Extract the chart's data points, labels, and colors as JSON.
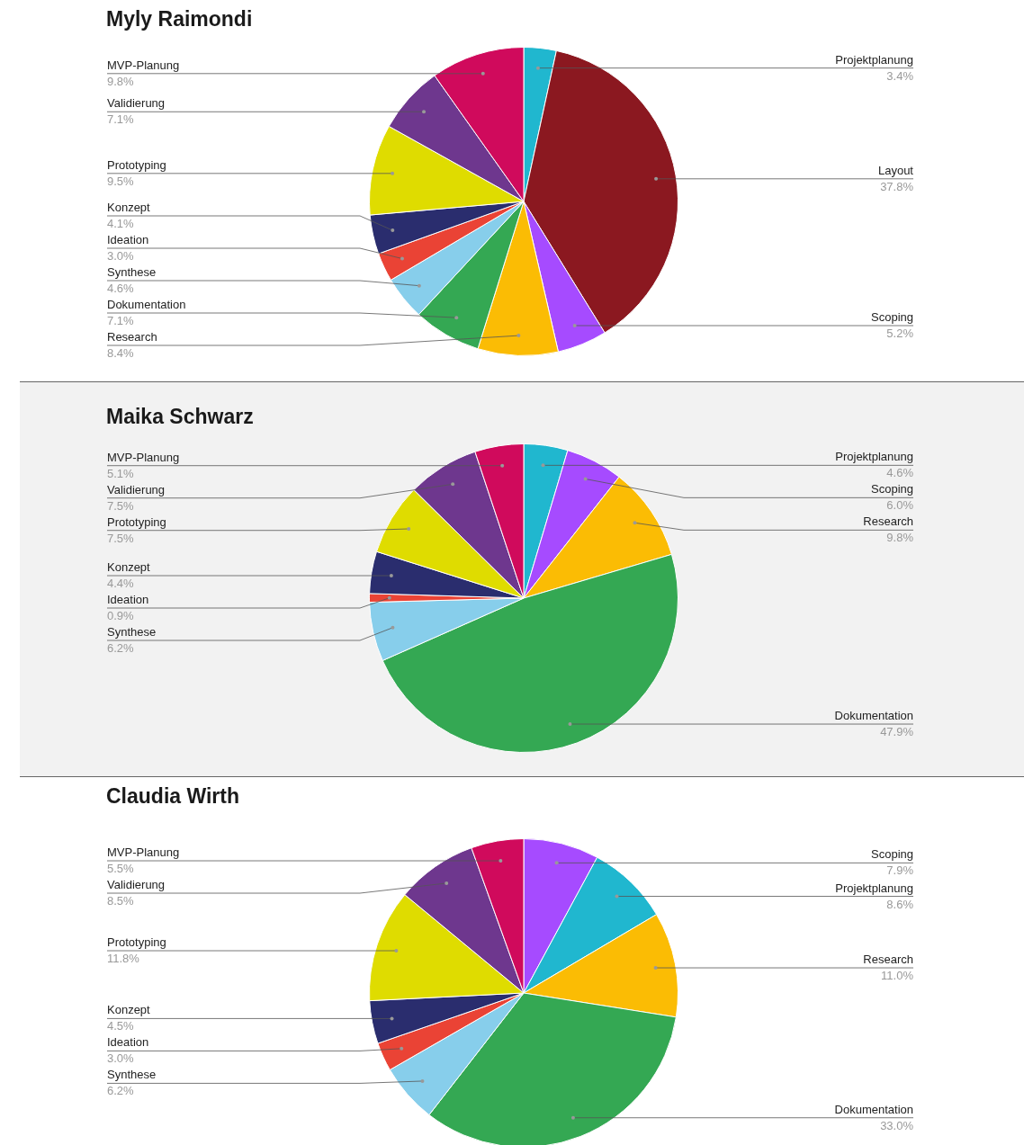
{
  "chart_data": [
    {
      "type": "pie",
      "title": "Myly Raimondi",
      "categories": [
        "Projektplanung",
        "Layout",
        "Scoping",
        "Research",
        "Dokumentation",
        "Synthese",
        "Ideation",
        "Konzept",
        "Prototyping",
        "Validierung",
        "MVP-Planung"
      ],
      "values": [
        3.4,
        37.8,
        5.2,
        8.4,
        7.1,
        4.6,
        3.0,
        4.1,
        9.5,
        7.1,
        9.8
      ],
      "value_labels": [
        "3.4%",
        "37.8%",
        "5.2%",
        "8.4%",
        "7.1%",
        "4.6%",
        "3.0%",
        "4.1%",
        "9.5%",
        "7.1%",
        "9.8%"
      ],
      "colors": [
        "#20b7cf",
        "#8b1820",
        "#a64bff",
        "#fbbc04",
        "#34a853",
        "#87ceeb",
        "#ea4335",
        "#2a2d6e",
        "#dfdc00",
        "#6e378e",
        "#d00a5c"
      ]
    },
    {
      "type": "pie",
      "title": "Maika Schwarz",
      "categories": [
        "Projektplanung",
        "Scoping",
        "Research",
        "Dokumentation",
        "Synthese",
        "Ideation",
        "Konzept",
        "Prototyping",
        "Validierung",
        "MVP-Planung"
      ],
      "values": [
        4.6,
        6.0,
        9.8,
        47.9,
        6.2,
        0.9,
        4.4,
        7.5,
        7.5,
        5.1
      ],
      "value_labels": [
        "4.6%",
        "6.0%",
        "9.8%",
        "47.9%",
        "6.2%",
        "0.9%",
        "4.4%",
        "7.5%",
        "7.5%",
        "5.1%"
      ],
      "colors": [
        "#20b7cf",
        "#a64bff",
        "#fbbc04",
        "#34a853",
        "#87ceeb",
        "#ea4335",
        "#2a2d6e",
        "#dfdc00",
        "#6e378e",
        "#d00a5c"
      ]
    },
    {
      "type": "pie",
      "title": "Claudia Wirth",
      "categories": [
        "Scoping",
        "Projektplanung",
        "Research",
        "Dokumentation",
        "Synthese",
        "Ideation",
        "Konzept",
        "Prototyping",
        "Validierung",
        "MVP-Planung"
      ],
      "values": [
        7.9,
        8.6,
        11.0,
        33.0,
        6.2,
        3.0,
        4.5,
        11.8,
        8.5,
        5.5
      ],
      "value_labels": [
        "7.9%",
        "8.6%",
        "11.0%",
        "33.0%",
        "6.2%",
        "3.0%",
        "4.5%",
        "11.8%",
        "8.5%",
        "5.5%"
      ],
      "colors": [
        "#a64bff",
        "#20b7cf",
        "#fbbc04",
        "#34a853",
        "#87ceeb",
        "#ea4335",
        "#2a2d6e",
        "#dfdc00",
        "#6e378e",
        "#d00a5c"
      ]
    }
  ]
}
